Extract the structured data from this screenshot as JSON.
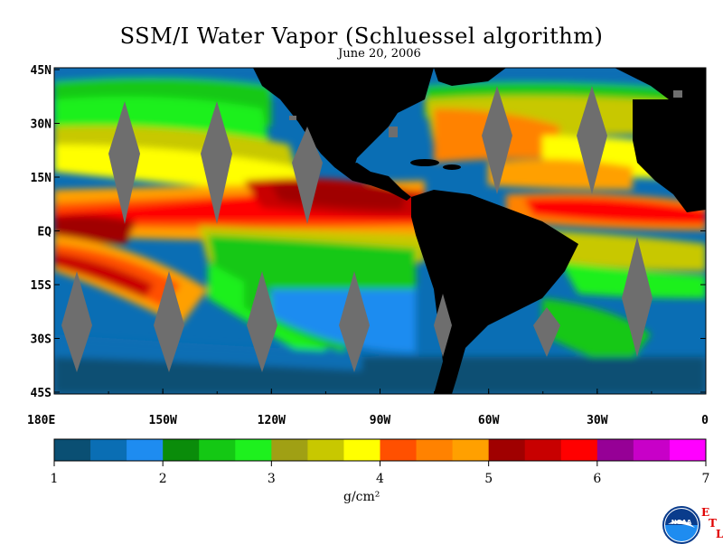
{
  "title": "SSM/I Water Vapor (Schluessel algorithm)",
  "subtitle": "June 20, 2006",
  "axes": {
    "lat_labels": [
      "45N",
      "30N",
      "15N",
      "EQ",
      "15S",
      "30S",
      "45S"
    ],
    "lon_labels": [
      "180E",
      "150W",
      "120W",
      "90W",
      "60W",
      "30W",
      "0"
    ]
  },
  "colorbar": {
    "tick_labels": [
      "1",
      "2",
      "3",
      "4",
      "5",
      "6",
      "7"
    ],
    "units": "g/cm²",
    "colors": [
      "#0a4f73",
      "#0a6eb4",
      "#1e8cf0",
      "#0a8c0a",
      "#14c814",
      "#1ef01e",
      "#a0a014",
      "#c8c800",
      "#ffff00",
      "#ff5000",
      "#ff8200",
      "#ffa000",
      "#a00000",
      "#c80000",
      "#ff0000",
      "#960096",
      "#c800c8",
      "#ff00ff"
    ]
  },
  "logo": {
    "text": "NOAA",
    "etl_letters": [
      "E",
      "T",
      "L"
    ]
  },
  "colors": {
    "land": "#000000",
    "gap": "#6e6e6e"
  }
}
